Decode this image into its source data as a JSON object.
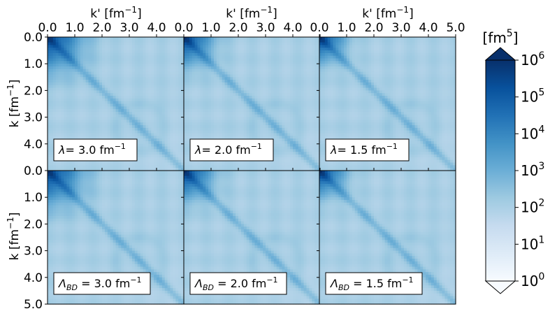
{
  "chart_data": {
    "type": "heatmap",
    "layout": {
      "rows": 2,
      "cols": 3,
      "shared_axes": true
    },
    "x_axis": {
      "label": "k' [fm$^{-1}$]",
      "label_text": "k' [fm",
      "label_sup": "−1",
      "label_close": "]",
      "ticks": [
        0.0,
        1.0,
        2.0,
        3.0,
        4.0,
        5.0
      ],
      "tick_labels": [
        "0.0",
        "1.0",
        "2.0",
        "3.0",
        "4.0",
        "5.0"
      ],
      "range": [
        0.0,
        5.0
      ],
      "position": "top"
    },
    "y_axis": {
      "label_text": "k [fm",
      "label_sup": "−1",
      "label_close": "]",
      "ticks": [
        0.0,
        1.0,
        2.0,
        3.0,
        4.0,
        5.0
      ],
      "tick_labels_top_row": [
        "0.0",
        "1.0",
        "2.0",
        "3.0",
        "4.0",
        "0.0"
      ],
      "tick_labels_bottom_row": [
        "0.0",
        "1.0",
        "2.0",
        "3.0",
        "4.0",
        "5.0"
      ],
      "range": [
        0.0,
        5.0
      ],
      "inverted": true
    },
    "colorbar": {
      "label_text": "[fm",
      "label_sup": "5",
      "label_close": "]",
      "scale": "log",
      "range": [
        1,
        1000000
      ],
      "extend": "both",
      "ticks": [
        {
          "base": "10",
          "exp": "0",
          "value": 1
        },
        {
          "base": "10",
          "exp": "1",
          "value": 10
        },
        {
          "base": "10",
          "exp": "2",
          "value": 100
        },
        {
          "base": "10",
          "exp": "3",
          "value": 1000
        },
        {
          "base": "10",
          "exp": "4",
          "value": 10000
        },
        {
          "base": "10",
          "exp": "5",
          "value": 100000
        },
        {
          "base": "10",
          "exp": "6",
          "value": 1000000
        }
      ],
      "colormap": "Blues",
      "colors": [
        "#f7fbff",
        "#deebf7",
        "#c6dbef",
        "#9ecae1",
        "#6baed6",
        "#4292c6",
        "#2171b5",
        "#08519c",
        "#08306b"
      ]
    },
    "panels": [
      {
        "row": 0,
        "col": 0,
        "symbol": "λ",
        "sub": "",
        "value": "= 3.0 fm",
        "sup": "−1",
        "lambda": 3.0
      },
      {
        "row": 0,
        "col": 1,
        "symbol": "λ",
        "sub": "",
        "value": "= 2.0 fm",
        "sup": "−1",
        "lambda": 2.0
      },
      {
        "row": 0,
        "col": 2,
        "symbol": "λ",
        "sub": "",
        "value": "= 1.5 fm",
        "sup": "−1",
        "lambda": 1.5
      },
      {
        "row": 1,
        "col": 0,
        "symbol": "Λ",
        "sub": "BD",
        "value": " = 3.0 fm",
        "sup": "−1",
        "lambda": 3.0
      },
      {
        "row": 1,
        "col": 1,
        "symbol": "Λ",
        "sub": "BD",
        "value": " = 2.0 fm",
        "sup": "−1",
        "lambda": 2.0
      },
      {
        "row": 1,
        "col": 2,
        "symbol": "Λ",
        "sub": "BD",
        "value": " = 1.5 fm",
        "sup": "−1",
        "lambda": 1.5
      }
    ]
  }
}
